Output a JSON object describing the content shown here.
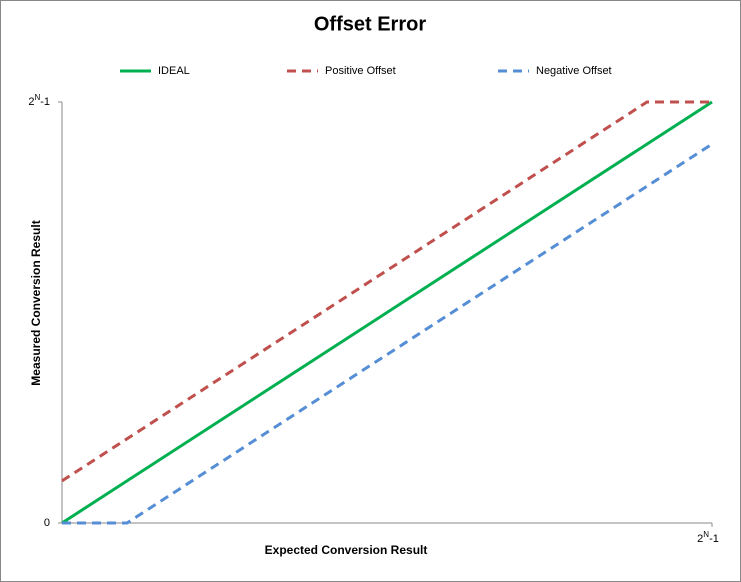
{
  "chart_data": {
    "type": "line",
    "title": "Offset Error",
    "xlabel": "Expected Conversion Result",
    "ylabel": "Measured Conversion Result",
    "xlim": [
      0,
      1
    ],
    "ylim": [
      0,
      1
    ],
    "xticks": [
      {
        "value": 1,
        "label": "2N-1"
      }
    ],
    "yticks": [
      0,
      {
        "value": 1,
        "label": "2N-1"
      }
    ],
    "series": [
      {
        "name": "IDEAL",
        "color": "#00b050",
        "dash": false,
        "x": [
          0,
          1
        ],
        "values": [
          0,
          1
        ]
      },
      {
        "name": "Positive Offset",
        "color": "#c0504d",
        "dash": true,
        "x": [
          0,
          0.9,
          1
        ],
        "values": [
          0.1,
          1,
          1
        ]
      },
      {
        "name": "Negative Offset",
        "color": "#558ed5",
        "dash": true,
        "x": [
          0,
          0.1,
          1
        ],
        "values": [
          0,
          0,
          0.9
        ]
      }
    ],
    "legend": "top"
  }
}
